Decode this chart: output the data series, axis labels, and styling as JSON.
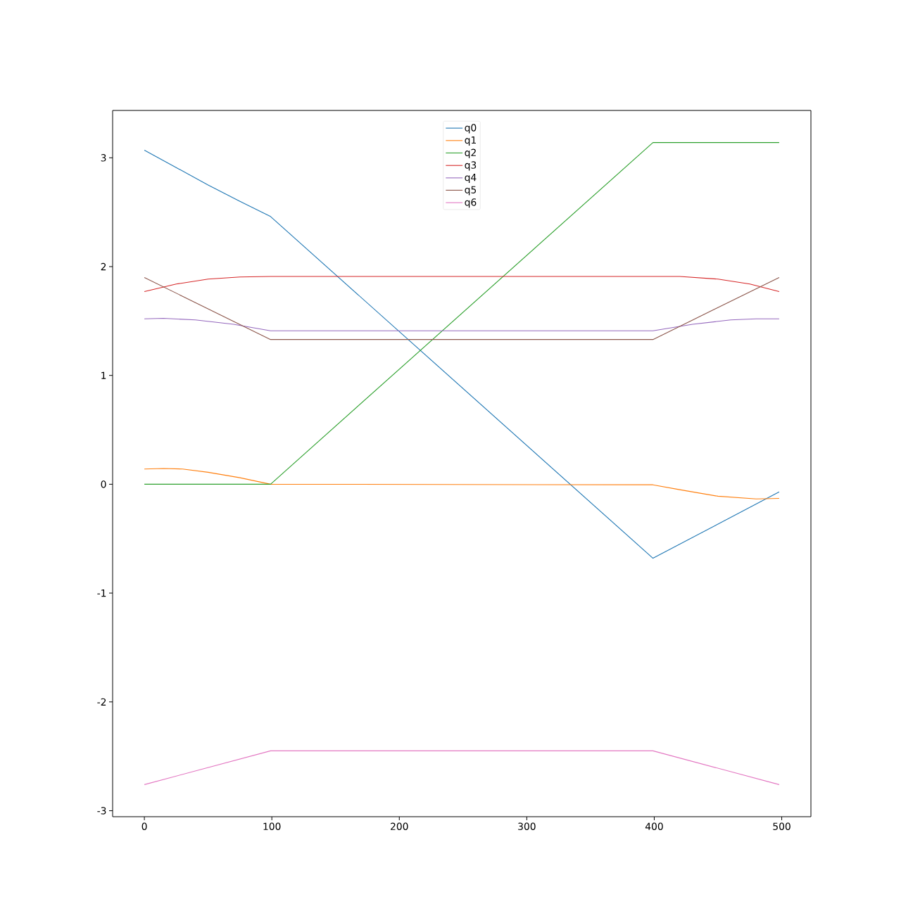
{
  "chart_data": {
    "type": "line",
    "xlim": [
      -24.9,
      522.9
    ],
    "ylim": [
      -3.055,
      3.435
    ],
    "xticks": [
      0,
      100,
      200,
      300,
      400,
      500
    ],
    "yticks": [
      -3,
      -2,
      -1,
      0,
      1,
      2,
      3
    ],
    "grid": false,
    "legend": "top",
    "marker": "none",
    "line_style": "solid",
    "series": [
      {
        "name": "q0",
        "color": "#1f77b4",
        "x": [
          0,
          25,
          50,
          75,
          99,
          399,
          498
        ],
        "values": [
          3.07,
          2.91,
          2.75,
          2.6,
          2.46,
          -0.68,
          -0.07
        ]
      },
      {
        "name": "q1",
        "color": "#ff7f0e",
        "x": [
          0,
          15,
          30,
          50,
          75,
          99,
          399,
          420,
          450,
          480,
          498
        ],
        "values": [
          0.14,
          0.145,
          0.14,
          0.11,
          0.06,
          0.0,
          -0.005,
          -0.05,
          -0.11,
          -0.135,
          -0.13
        ]
      },
      {
        "name": "q2",
        "color": "#2ca02c",
        "x": [
          0,
          99,
          399,
          498
        ],
        "values": [
          0.0,
          0.0,
          3.14,
          3.14
        ]
      },
      {
        "name": "q3",
        "color": "#d62728",
        "x": [
          0,
          25,
          50,
          75,
          99,
          399,
          420,
          450,
          475,
          498
        ],
        "values": [
          1.77,
          1.84,
          1.885,
          1.905,
          1.91,
          1.91,
          1.91,
          1.885,
          1.84,
          1.77
        ]
      },
      {
        "name": "q4",
        "color": "#9467bd",
        "x": [
          0,
          15,
          40,
          70,
          99,
          399,
          430,
          460,
          480,
          498
        ],
        "values": [
          1.52,
          1.525,
          1.51,
          1.47,
          1.41,
          1.41,
          1.47,
          1.51,
          1.52,
          1.52
        ]
      },
      {
        "name": "q5",
        "color": "#8c564b",
        "x": [
          0,
          99,
          399,
          498
        ],
        "values": [
          1.9,
          1.33,
          1.33,
          1.9
        ]
      },
      {
        "name": "q6",
        "color": "#e377c2",
        "x": [
          0,
          99,
          399,
          498
        ],
        "values": [
          -2.76,
          -2.45,
          -2.45,
          -2.76
        ]
      }
    ]
  }
}
